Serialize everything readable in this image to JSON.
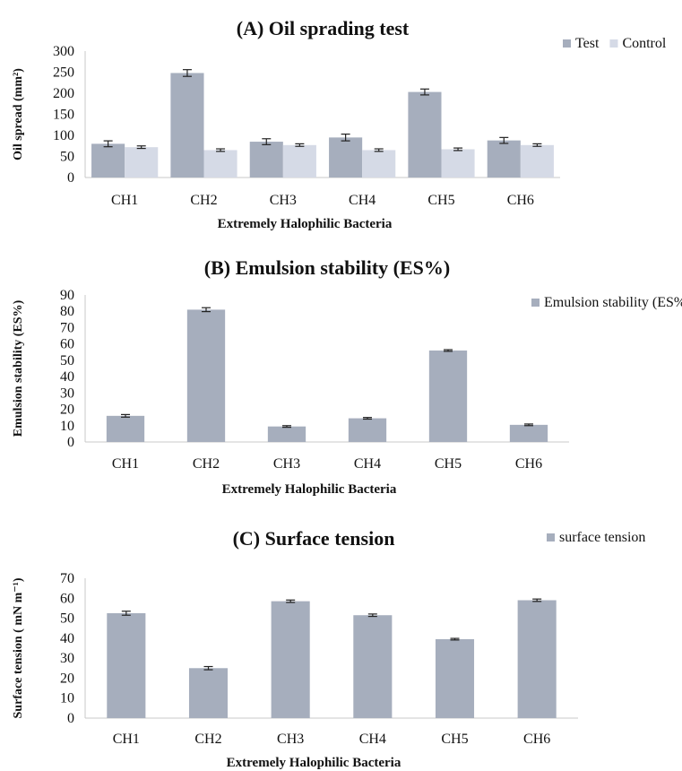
{
  "chart_data": [
    {
      "type": "bar",
      "title": "(A) Oil sprading test",
      "xlabel": "Extremely Halophilic Bacteria",
      "ylabel": "Oil spread (mm²)",
      "categories": [
        "CH1",
        "CH2",
        "CH3",
        "CH4",
        "CH5",
        "CH6"
      ],
      "series": [
        {
          "name": "Test",
          "values": [
            80,
            248,
            85,
            95,
            203,
            88
          ],
          "errors": [
            7,
            8,
            7,
            8,
            7,
            7
          ],
          "color": "#a6aebd"
        },
        {
          "name": "Control",
          "values": [
            72,
            65,
            77,
            65,
            67,
            77
          ],
          "errors": [
            3,
            3,
            3,
            3,
            3,
            3
          ],
          "color": "#d5dae6"
        }
      ],
      "ylim": [
        0,
        300
      ],
      "yticks": [
        0,
        50,
        100,
        150,
        200,
        250,
        300
      ],
      "legend": "top-right"
    },
    {
      "type": "bar",
      "title": "(B) Emulsion stability (ES%)",
      "xlabel": "Extremely Halophilic Bacteria",
      "ylabel": "Emulsion stability (ES%)",
      "categories": [
        "CH1",
        "CH2",
        "CH3",
        "CH4",
        "CH5",
        "CH6"
      ],
      "series": [
        {
          "name": "Emulsion stability (ES%)",
          "values": [
            16,
            81,
            9.5,
            14.5,
            56,
            10.5
          ],
          "errors": [
            0.8,
            1.2,
            0.5,
            0.5,
            0.5,
            0.5
          ],
          "color": "#a6aebd"
        }
      ],
      "ylim": [
        0,
        90
      ],
      "yticks": [
        0,
        10,
        20,
        30,
        40,
        50,
        60,
        70,
        80,
        90
      ],
      "legend": "top-right"
    },
    {
      "type": "bar",
      "title": "(C) Surface tension",
      "xlabel": "Extremely Halophilic Bacteria",
      "ylabel": "Surface tension ( mN m⁻¹)",
      "categories": [
        "CH1",
        "CH2",
        "CH3",
        "CH4",
        "CH5",
        "CH6"
      ],
      "series": [
        {
          "name": "surface tension",
          "values": [
            52.5,
            25,
            58.5,
            51.5,
            39.5,
            59
          ],
          "errors": [
            1.0,
            0.8,
            0.6,
            0.6,
            0.4,
            0.6
          ],
          "color": "#a6aebd"
        }
      ],
      "ylim": [
        0,
        70
      ],
      "yticks": [
        0,
        10,
        20,
        30,
        40,
        50,
        60,
        70
      ],
      "legend": "top-right"
    }
  ]
}
